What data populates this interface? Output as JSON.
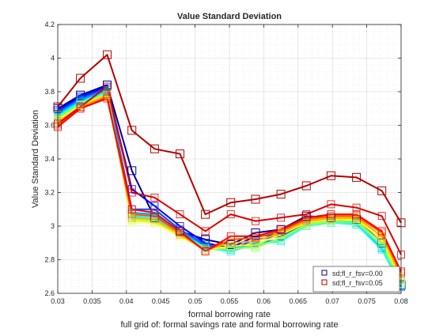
{
  "chart_data": {
    "type": "line",
    "title": "Value Standard Deviation",
    "xlabel": "formal borrowing rate",
    "ylabel": "Value Standard Deviation",
    "footer": "full grid of: formal savings rate and formal borrowing rate",
    "xlim": [
      0.03,
      0.08
    ],
    "ylim": [
      2.6,
      4.2
    ],
    "xticks": [
      "0.03",
      "0.035",
      "0.04",
      "0.045",
      "0.05",
      "0.055",
      "0.06",
      "0.065",
      "0.07",
      "0.075",
      "0.08"
    ],
    "yticks": [
      "2.6",
      "2.8",
      "3",
      "3.2",
      "3.4",
      "3.6",
      "3.8",
      "4",
      "4.2"
    ],
    "grid": true,
    "legend_position": "bottom-right",
    "x": [
      0.03,
      0.0333,
      0.0372,
      0.0408,
      0.0441,
      0.0478,
      0.0515,
      0.0552,
      0.0588,
      0.0625,
      0.0662,
      0.0698,
      0.0735,
      0.0772,
      0.08
    ],
    "series": [
      {
        "name": "sd;fl_r_fsv=0.00",
        "color": "#00008f",
        "marker": true,
        "values": [
          3.7,
          3.78,
          3.84,
          3.33,
          3.05,
          2.97,
          2.92,
          2.89,
          2.96,
          2.98,
          3.06,
          3.05,
          3.04,
          2.9,
          2.65
        ]
      },
      {
        "color": "#0000ff",
        "values": [
          3.69,
          3.77,
          3.83,
          3.22,
          3.12,
          3.0,
          2.9,
          2.87,
          2.94,
          2.95,
          3.03,
          3.04,
          3.02,
          2.88,
          2.64
        ]
      },
      {
        "color": "#0050ff",
        "values": [
          3.68,
          3.76,
          3.82,
          3.1,
          3.1,
          2.98,
          2.89,
          2.86,
          2.92,
          2.94,
          3.02,
          3.03,
          3.02,
          2.87,
          2.64
        ]
      },
      {
        "color": "#00a0ff",
        "values": [
          3.67,
          3.75,
          3.81,
          3.08,
          3.07,
          2.97,
          2.88,
          2.86,
          2.9,
          2.92,
          3.01,
          3.03,
          3.01,
          2.87,
          2.65
        ]
      },
      {
        "color": "#00ffff",
        "values": [
          3.66,
          3.74,
          3.8,
          3.06,
          3.05,
          2.96,
          2.87,
          2.85,
          2.89,
          2.91,
          3.0,
          3.02,
          3.01,
          2.86,
          2.65
        ]
      },
      {
        "color": "#50ffaf",
        "values": [
          3.65,
          3.73,
          3.79,
          3.05,
          3.04,
          2.95,
          2.87,
          2.86,
          2.88,
          2.92,
          3.0,
          3.02,
          3.02,
          2.88,
          2.66
        ]
      },
      {
        "color": "#a0ff50",
        "values": [
          3.64,
          3.72,
          3.79,
          3.04,
          3.03,
          2.95,
          2.86,
          2.87,
          2.87,
          2.93,
          3.01,
          3.03,
          3.03,
          2.9,
          2.67
        ]
      },
      {
        "color": "#ffff00",
        "values": [
          3.63,
          3.72,
          3.78,
          3.03,
          3.02,
          2.94,
          2.86,
          2.88,
          2.89,
          2.95,
          3.02,
          3.04,
          3.04,
          2.92,
          2.68
        ]
      },
      {
        "color": "#ffaf00",
        "values": [
          3.62,
          3.71,
          3.78,
          3.05,
          3.04,
          2.95,
          2.86,
          2.9,
          2.91,
          2.96,
          3.03,
          3.05,
          3.05,
          2.94,
          2.7
        ]
      },
      {
        "color": "#ff5000",
        "values": [
          3.6,
          3.7,
          3.77,
          3.07,
          3.06,
          2.96,
          2.85,
          2.92,
          2.93,
          2.97,
          3.04,
          3.06,
          3.06,
          2.96,
          2.72
        ]
      },
      {
        "color": "#ff0000",
        "values": [
          3.59,
          3.7,
          3.76,
          3.1,
          3.08,
          2.97,
          2.85,
          2.94,
          2.94,
          2.98,
          3.05,
          3.07,
          3.07,
          2.97,
          2.73
        ]
      },
      {
        "color": "#dd0000",
        "values": [
          3.61,
          3.71,
          3.83,
          3.2,
          3.17,
          3.07,
          2.97,
          3.07,
          3.03,
          3.05,
          3.07,
          3.13,
          3.11,
          3.06,
          2.83
        ]
      },
      {
        "name": "sd;fl_r_fsv=0.05",
        "color": "#b40000",
        "marker": true,
        "values": [
          3.71,
          3.88,
          4.02,
          3.57,
          3.46,
          3.43,
          3.07,
          3.14,
          3.16,
          3.19,
          3.24,
          3.3,
          3.29,
          3.21,
          3.02
        ]
      }
    ]
  }
}
